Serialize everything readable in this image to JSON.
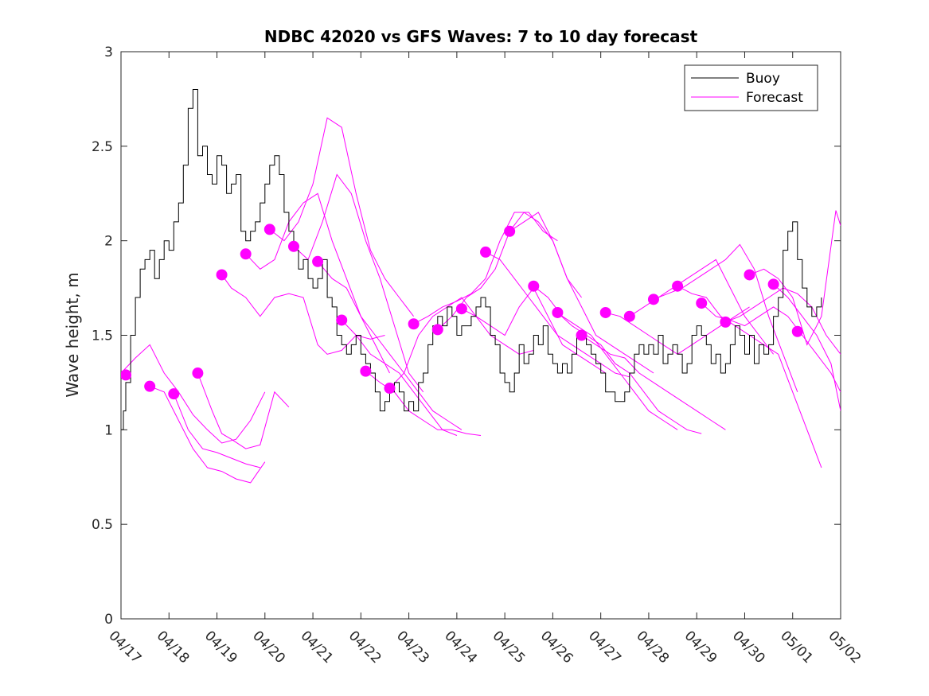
{
  "chart_data": {
    "type": "line",
    "title": "NDBC 42020 vs GFS Waves: 7 to 10 day forecast",
    "xlabel": "",
    "ylabel": "Wave height, m",
    "xlim": [
      "04/17",
      "05/02"
    ],
    "ylim": [
      0,
      3
    ],
    "x_ticks": [
      "04/17",
      "04/18",
      "04/19",
      "04/20",
      "04/21",
      "04/22",
      "04/23",
      "04/24",
      "04/25",
      "04/26",
      "04/27",
      "04/28",
      "04/29",
      "04/30",
      "05/01",
      "05/02"
    ],
    "y_ticks": [
      "0",
      "0.5",
      "1",
      "1.5",
      "2",
      "2.5",
      "3"
    ],
    "grid": false,
    "legend": {
      "placement": "top-right",
      "entries": [
        "Buoy",
        "Forecast"
      ]
    },
    "colors": {
      "buoy": "#000000",
      "forecast": "#ff00ff",
      "axes": "#262626"
    },
    "buoy": {
      "name": "Buoy",
      "x_days_from_04_17": [
        0,
        0.05,
        0.1,
        0.2,
        0.3,
        0.4,
        0.5,
        0.6,
        0.7,
        0.8,
        0.9,
        1.0,
        1.1,
        1.2,
        1.3,
        1.4,
        1.5,
        1.6,
        1.7,
        1.8,
        1.9,
        2.0,
        2.1,
        2.2,
        2.3,
        2.4,
        2.5,
        2.6,
        2.7,
        2.8,
        2.9,
        3.0,
        3.1,
        3.2,
        3.3,
        3.4,
        3.5,
        3.6,
        3.7,
        3.8,
        3.9,
        4.0,
        4.1,
        4.2,
        4.3,
        4.4,
        4.5,
        4.6,
        4.7,
        4.8,
        4.9,
        5.0,
        5.1,
        5.2,
        5.3,
        5.4,
        5.5,
        5.6,
        5.7,
        5.8,
        5.9,
        6.0,
        6.1,
        6.2,
        6.3,
        6.4,
        6.5,
        6.6,
        6.7,
        6.8,
        6.9,
        7.0,
        7.1,
        7.2,
        7.3,
        7.4,
        7.5,
        7.6,
        7.7,
        7.8,
        7.9,
        8.0,
        8.1,
        8.2,
        8.3,
        8.4,
        8.5,
        8.6,
        8.7,
        8.8,
        8.9,
        9.0,
        9.1,
        9.2,
        9.3,
        9.4,
        9.5,
        9.6,
        9.7,
        9.8,
        9.9,
        10.0,
        10.1,
        10.2,
        10.3,
        10.4,
        10.5,
        10.6,
        10.7,
        10.8,
        10.9,
        11.0,
        11.1,
        11.2,
        11.3,
        11.4,
        11.5,
        11.6,
        11.7,
        11.8,
        11.9,
        12.0,
        12.1,
        12.2,
        12.3,
        12.4,
        12.5,
        12.6,
        12.7,
        12.8,
        12.9,
        13.0,
        13.1,
        13.2,
        13.3,
        13.4,
        13.5,
        13.6,
        13.7,
        13.8,
        13.9,
        14.0,
        14.1,
        14.2,
        14.3,
        14.4,
        14.5,
        14.6
      ],
      "y": [
        1.0,
        1.1,
        1.25,
        1.5,
        1.7,
        1.85,
        1.9,
        1.95,
        1.8,
        1.9,
        2.0,
        1.95,
        2.1,
        2.2,
        2.4,
        2.7,
        2.8,
        2.45,
        2.5,
        2.35,
        2.3,
        2.45,
        2.4,
        2.25,
        2.3,
        2.35,
        2.05,
        2.0,
        2.05,
        2.1,
        2.2,
        2.3,
        2.4,
        2.45,
        2.35,
        2.15,
        2.05,
        1.95,
        1.85,
        1.9,
        1.8,
        1.75,
        1.8,
        1.9,
        1.7,
        1.65,
        1.5,
        1.45,
        1.4,
        1.45,
        1.5,
        1.4,
        1.35,
        1.3,
        1.2,
        1.1,
        1.15,
        1.2,
        1.25,
        1.2,
        1.1,
        1.15,
        1.1,
        1.25,
        1.3,
        1.45,
        1.55,
        1.6,
        1.55,
        1.65,
        1.6,
        1.5,
        1.55,
        1.55,
        1.6,
        1.65,
        1.7,
        1.65,
        1.5,
        1.45,
        1.3,
        1.25,
        1.2,
        1.3,
        1.45,
        1.35,
        1.4,
        1.5,
        1.45,
        1.55,
        1.4,
        1.35,
        1.3,
        1.35,
        1.3,
        1.4,
        1.5,
        1.5,
        1.45,
        1.4,
        1.35,
        1.3,
        1.2,
        1.2,
        1.15,
        1.15,
        1.2,
        1.3,
        1.4,
        1.45,
        1.4,
        1.45,
        1.4,
        1.5,
        1.35,
        1.4,
        1.45,
        1.4,
        1.3,
        1.35,
        1.5,
        1.55,
        1.5,
        1.45,
        1.35,
        1.4,
        1.3,
        1.35,
        1.45,
        1.55,
        1.5,
        1.4,
        1.5,
        1.35,
        1.45,
        1.4,
        1.45,
        1.6,
        1.7,
        1.95,
        2.05,
        2.1,
        1.9,
        1.75,
        1.65,
        1.6,
        1.65,
        1.7
      ]
    },
    "forecast_lines": [
      {
        "x_days_from_04_17": [
          0,
          0.3,
          0.6,
          0.9,
          1.2,
          1.5,
          1.8,
          2.1,
          2.4,
          2.7,
          3.0
        ],
        "y": [
          1.3,
          1.38,
          1.45,
          1.3,
          1.2,
          1.08,
          1.0,
          0.93,
          0.95,
          1.05,
          1.2
        ]
      },
      {
        "x_days_from_04_17": [
          0.6,
          0.9,
          1.2,
          1.5,
          1.8,
          2.1,
          2.4,
          2.7,
          3.0
        ],
        "y": [
          1.23,
          1.2,
          1.05,
          0.9,
          0.8,
          0.78,
          0.74,
          0.72,
          0.83
        ]
      },
      {
        "x_days_from_04_17": [
          1.1,
          1.4,
          1.7,
          2.0,
          2.3,
          2.6,
          2.9
        ],
        "y": [
          1.19,
          1.0,
          0.9,
          0.88,
          0.85,
          0.82,
          0.8
        ]
      },
      {
        "x_days_from_04_17": [
          1.6,
          1.9,
          2.1,
          2.3,
          2.6,
          2.9,
          3.2,
          3.5
        ],
        "y": [
          1.3,
          1.1,
          0.98,
          0.95,
          0.9,
          0.92,
          1.2,
          1.12
        ]
      },
      {
        "x_days_from_04_17": [
          2.1,
          2.3,
          2.6,
          2.9,
          3.2,
          3.5,
          3.8,
          4.1,
          4.3,
          4.6,
          4.9,
          5.2,
          5.5
        ],
        "y": [
          1.82,
          1.75,
          1.7,
          1.6,
          1.7,
          1.72,
          1.7,
          1.45,
          1.4,
          1.42,
          1.5,
          1.48,
          1.5
        ]
      },
      {
        "x_days_from_04_17": [
          2.6,
          2.9,
          3.2,
          3.5,
          3.8,
          4.1,
          4.4,
          4.7,
          5.0,
          5.3,
          5.6
        ],
        "y": [
          1.93,
          1.85,
          1.9,
          2.1,
          2.2,
          2.25,
          2.0,
          1.8,
          1.6,
          1.45,
          1.3
        ]
      },
      {
        "x_days_from_04_17": [
          3.1,
          3.4,
          3.7,
          4.0,
          4.3,
          4.6,
          4.9,
          5.2,
          5.5,
          5.8,
          6.1
        ],
        "y": [
          2.06,
          2.0,
          2.1,
          2.3,
          2.65,
          2.6,
          2.25,
          1.95,
          1.8,
          1.7,
          1.6
        ]
      },
      {
        "x_days_from_04_17": [
          3.6,
          3.9,
          4.2,
          4.5,
          4.8,
          5.1,
          5.4,
          5.7,
          6.0,
          6.3
        ],
        "y": [
          1.97,
          1.9,
          2.1,
          2.35,
          2.25,
          2.0,
          1.8,
          1.55,
          1.3,
          1.2
        ]
      },
      {
        "x_days_from_04_17": [
          4.1,
          4.4,
          4.7,
          5.0,
          5.3,
          5.6,
          5.9,
          6.2,
          6.5,
          6.8,
          7.1
        ],
        "y": [
          1.89,
          1.8,
          1.75,
          1.6,
          1.5,
          1.4,
          1.3,
          1.2,
          1.1,
          1.05,
          1.0
        ]
      },
      {
        "x_days_from_04_17": [
          4.6,
          4.9,
          5.2,
          5.5,
          5.8,
          6.1,
          6.4,
          6.7,
          7.0
        ],
        "y": [
          1.58,
          1.5,
          1.4,
          1.35,
          1.3,
          1.2,
          1.1,
          1.0,
          0.97
        ]
      },
      {
        "x_days_from_04_17": [
          5.1,
          5.4,
          5.7,
          6.0,
          6.3,
          6.6,
          6.9,
          7.2,
          7.5
        ],
        "y": [
          1.31,
          1.25,
          1.2,
          1.1,
          1.05,
          1.0,
          1.0,
          0.98,
          0.97
        ]
      },
      {
        "x_days_from_04_17": [
          5.6,
          5.9,
          6.2,
          6.5,
          6.8,
          7.1,
          7.4,
          7.7,
          8.0,
          8.3,
          8.6
        ],
        "y": [
          1.22,
          1.3,
          1.5,
          1.6,
          1.65,
          1.7,
          1.6,
          1.5,
          1.45,
          1.4,
          1.42
        ]
      },
      {
        "x_days_from_04_17": [
          6.1,
          6.4,
          6.7,
          7.0,
          7.3,
          7.6,
          7.9,
          8.2,
          8.5,
          8.8,
          9.1
        ],
        "y": [
          1.56,
          1.6,
          1.65,
          1.68,
          1.72,
          1.8,
          2.0,
          2.15,
          2.15,
          2.05,
          2.0
        ]
      },
      {
        "x_days_from_04_17": [
          6.6,
          6.9,
          7.2,
          7.5,
          7.8,
          8.1,
          8.4,
          8.7,
          9.0,
          9.3,
          9.6
        ],
        "y": [
          1.53,
          1.6,
          1.7,
          1.75,
          1.85,
          2.05,
          2.15,
          2.1,
          2.0,
          1.8,
          1.7
        ]
      },
      {
        "x_days_from_04_17": [
          7.1,
          7.4,
          7.7,
          8.0,
          8.3,
          8.6,
          8.9,
          9.2,
          9.5,
          9.8,
          10.1
        ],
        "y": [
          1.64,
          1.6,
          1.55,
          1.5,
          1.65,
          1.75,
          1.6,
          1.45,
          1.4,
          1.35,
          1.3
        ]
      },
      {
        "x_days_from_04_17": [
          7.6,
          7.9,
          8.2,
          8.5,
          8.8,
          9.1,
          9.4,
          9.7,
          10.0,
          10.3,
          10.6
        ],
        "y": [
          1.94,
          1.9,
          1.8,
          1.7,
          1.6,
          1.5,
          1.45,
          1.4,
          1.35,
          1.3,
          1.28
        ]
      },
      {
        "x_days_from_04_17": [
          8.1,
          8.4,
          8.7,
          9.0,
          9.3,
          9.6,
          9.9,
          10.2,
          10.5,
          10.8,
          11.1
        ],
        "y": [
          2.05,
          2.1,
          2.15,
          2.0,
          1.8,
          1.65,
          1.5,
          1.45,
          1.4,
          1.35,
          1.3
        ]
      },
      {
        "x_days_from_04_17": [
          8.6,
          8.9,
          9.2,
          9.5,
          9.8,
          10.1,
          10.4,
          10.7,
          11.0,
          11.3,
          11.6
        ],
        "y": [
          1.76,
          1.7,
          1.6,
          1.55,
          1.5,
          1.4,
          1.3,
          1.2,
          1.1,
          1.05,
          1.0
        ]
      },
      {
        "x_days_from_04_17": [
          9.1,
          9.4,
          9.7,
          10.0,
          10.3,
          10.6,
          10.9,
          11.2,
          11.5,
          11.8,
          12.1
        ],
        "y": [
          1.62,
          1.55,
          1.5,
          1.45,
          1.35,
          1.3,
          1.2,
          1.1,
          1.05,
          1.0,
          0.98
        ]
      },
      {
        "x_days_from_04_17": [
          9.6,
          9.9,
          10.2,
          10.5,
          10.8,
          11.1,
          11.4,
          11.7,
          12.0,
          12.3,
          12.6
        ],
        "y": [
          1.5,
          1.45,
          1.4,
          1.38,
          1.3,
          1.25,
          1.2,
          1.15,
          1.1,
          1.05,
          1.0
        ]
      },
      {
        "x_days_from_04_17": [
          10.1,
          10.4,
          10.7,
          11.0,
          11.3,
          11.6,
          11.9,
          12.2,
          12.5,
          12.8,
          13.1
        ],
        "y": [
          1.62,
          1.6,
          1.55,
          1.5,
          1.45,
          1.4,
          1.45,
          1.5,
          1.55,
          1.6,
          1.65
        ]
      },
      {
        "x_days_from_04_17": [
          10.6,
          10.9,
          11.2,
          11.5,
          11.8,
          12.1,
          12.4,
          12.7,
          13.0,
          13.3,
          13.6
        ],
        "y": [
          1.6,
          1.65,
          1.7,
          1.75,
          1.8,
          1.85,
          1.9,
          1.75,
          1.6,
          1.5,
          1.4
        ]
      },
      {
        "x_days_from_04_17": [
          11.1,
          11.4,
          11.7,
          12.0,
          12.3,
          12.6,
          12.9,
          13.2,
          13.5,
          13.8,
          14.1
        ],
        "y": [
          1.69,
          1.72,
          1.75,
          1.8,
          1.85,
          1.9,
          1.98,
          1.85,
          1.6,
          1.4,
          1.2
        ]
      },
      {
        "x_days_from_04_17": [
          11.6,
          11.9,
          12.2,
          12.5,
          12.8,
          13.1,
          13.4,
          13.7,
          14.0,
          14.3,
          14.6
        ],
        "y": [
          1.76,
          1.72,
          1.7,
          1.6,
          1.55,
          1.5,
          1.45,
          1.4,
          1.2,
          1.0,
          0.8
        ]
      },
      {
        "x_days_from_04_17": [
          12.1,
          12.4,
          12.7,
          13.0,
          13.3,
          13.6,
          13.9,
          14.2,
          14.5,
          14.8,
          15.0
        ],
        "y": [
          1.67,
          1.6,
          1.58,
          1.55,
          1.6,
          1.65,
          1.6,
          1.5,
          1.4,
          1.3,
          1.2
        ]
      },
      {
        "x_days_from_04_17": [
          12.6,
          12.9,
          13.2,
          13.5,
          13.8,
          14.1,
          14.4,
          14.7,
          15.0
        ],
        "y": [
          1.57,
          1.6,
          1.65,
          1.7,
          1.75,
          1.72,
          1.65,
          1.5,
          1.4
        ]
      },
      {
        "x_days_from_04_17": [
          13.1,
          13.4,
          13.7,
          14.0,
          14.3,
          14.6,
          14.9,
          15.0
        ],
        "y": [
          1.82,
          1.85,
          1.8,
          1.7,
          1.45,
          1.6,
          2.16,
          2.08
        ]
      },
      {
        "x_days_from_04_17": [
          13.6,
          13.9,
          14.2,
          14.5,
          14.8,
          15.0
        ],
        "y": [
          1.77,
          1.7,
          1.6,
          1.5,
          1.35,
          1.1
        ]
      }
    ],
    "forecast_markers": {
      "name": "Forecast",
      "x_days_from_04_17": [
        0.1,
        0.6,
        1.1,
        1.6,
        2.1,
        2.6,
        3.1,
        3.6,
        4.1,
        4.6,
        5.1,
        5.6,
        6.1,
        6.6,
        7.1,
        7.6,
        8.1,
        8.6,
        9.1,
        9.6,
        10.1,
        10.6,
        11.1,
        11.6,
        12.1,
        12.6,
        13.1,
        13.6,
        14.1
      ],
      "y": [
        1.29,
        1.23,
        1.19,
        1.3,
        1.82,
        1.93,
        2.06,
        1.97,
        1.89,
        1.58,
        1.31,
        1.22,
        1.56,
        1.53,
        1.64,
        1.94,
        2.05,
        1.76,
        1.62,
        1.5,
        1.62,
        1.6,
        1.69,
        1.76,
        1.67,
        1.57,
        1.82,
        1.77,
        1.52
      ]
    }
  }
}
